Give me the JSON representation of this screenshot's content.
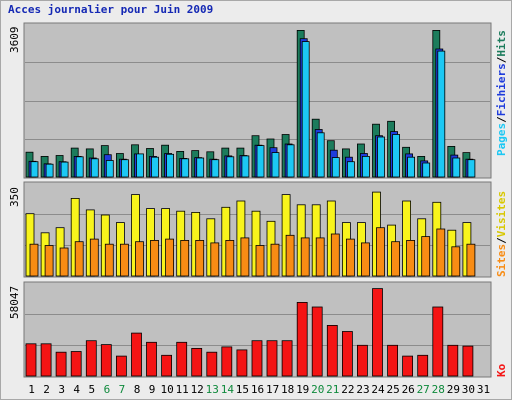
{
  "title": "Acces journalier pour Juin 2009",
  "colors": {
    "hits": "#1c7c5c",
    "files": "#1e3cdc",
    "pages": "#1cc8f4",
    "visits": "#f8f41c",
    "sites": "#f88c14",
    "kb": "#f41414",
    "weekend_label": "#0f8a3c",
    "weekday_label": "#000000",
    "grid": "#8c8c8c",
    "panel": "#c0c0c0"
  },
  "chart_data": [
    {
      "type": "bar",
      "title": "Acces journalier pour Juin 2009",
      "categories": [
        "1",
        "2",
        "3",
        "4",
        "5",
        "6",
        "7",
        "8",
        "9",
        "10",
        "11",
        "12",
        "13",
        "14",
        "15",
        "16",
        "17",
        "18",
        "19",
        "20",
        "21",
        "22",
        "23",
        "24",
        "25",
        "26",
        "27",
        "28",
        "29",
        "30",
        "31"
      ],
      "weekend_days": [
        "6",
        "7",
        "13",
        "14",
        "20",
        "21",
        "27",
        "28"
      ],
      "ylim": [
        0,
        3609
      ],
      "max_label": "3609",
      "legend": {
        "hits": "Hits",
        "files": "Fichiers",
        "pages": "Pages",
        "sep": "/"
      },
      "series": [
        {
          "name": "Hits",
          "values": [
            600,
            500,
            520,
            700,
            680,
            760,
            570,
            780,
            690,
            770,
            620,
            640,
            610,
            700,
            700,
            1000,
            920,
            1030,
            3550,
            1400,
            880,
            680,
            800,
            1280,
            1350,
            720,
            500,
            3550,
            740,
            590,
            null
          ]
        },
        {
          "name": "Fichiers",
          "values": [
            380,
            320,
            370,
            500,
            460,
            540,
            430,
            560,
            500,
            570,
            450,
            470,
            430,
            510,
            520,
            770,
            710,
            800,
            3350,
            1150,
            650,
            480,
            570,
            1000,
            1100,
            560,
            390,
            3100,
            530,
            430,
            null
          ]
        },
        {
          "name": "Pages",
          "values": [
            370,
            310,
            360,
            490,
            440,
            400,
            420,
            560,
            480,
            550,
            440,
            460,
            420,
            490,
            510,
            760,
            590,
            780,
            3280,
            1070,
            470,
            370,
            500,
            970,
            1030,
            480,
            340,
            3050,
            460,
            420,
            null
          ]
        }
      ]
    },
    {
      "type": "bar",
      "ylim": [
        0,
        350
      ],
      "max_label": "350",
      "legend": {
        "visits": "Visites",
        "sites": "Sites",
        "sep": "/"
      },
      "series": [
        {
          "name": "Visites",
          "values": [
            245,
            170,
            190,
            305,
            260,
            240,
            210,
            320,
            265,
            265,
            255,
            250,
            225,
            270,
            295,
            255,
            215,
            320,
            280,
            280,
            295,
            210,
            210,
            330,
            200,
            295,
            225,
            290,
            180,
            210,
            null
          ]
        },
        {
          "name": "Sites",
          "values": [
            125,
            120,
            110,
            135,
            145,
            125,
            125,
            135,
            140,
            145,
            140,
            140,
            130,
            140,
            150,
            120,
            125,
            160,
            150,
            150,
            165,
            145,
            130,
            190,
            135,
            140,
            155,
            185,
            115,
            125,
            null
          ]
        }
      ]
    },
    {
      "type": "bar",
      "ylim": [
        0,
        58047
      ],
      "max_label": "58047",
      "legend": {
        "kb": "Ko"
      },
      "series": [
        {
          "name": "Ko",
          "values": [
            21000,
            21000,
            15500,
            16000,
            23000,
            20500,
            13000,
            28000,
            22000,
            13500,
            22000,
            18000,
            15500,
            19000,
            17000,
            23000,
            23000,
            23000,
            48000,
            45000,
            33000,
            29000,
            20000,
            57000,
            20000,
            13000,
            13500,
            45000,
            20000,
            19500,
            null
          ]
        }
      ]
    }
  ]
}
